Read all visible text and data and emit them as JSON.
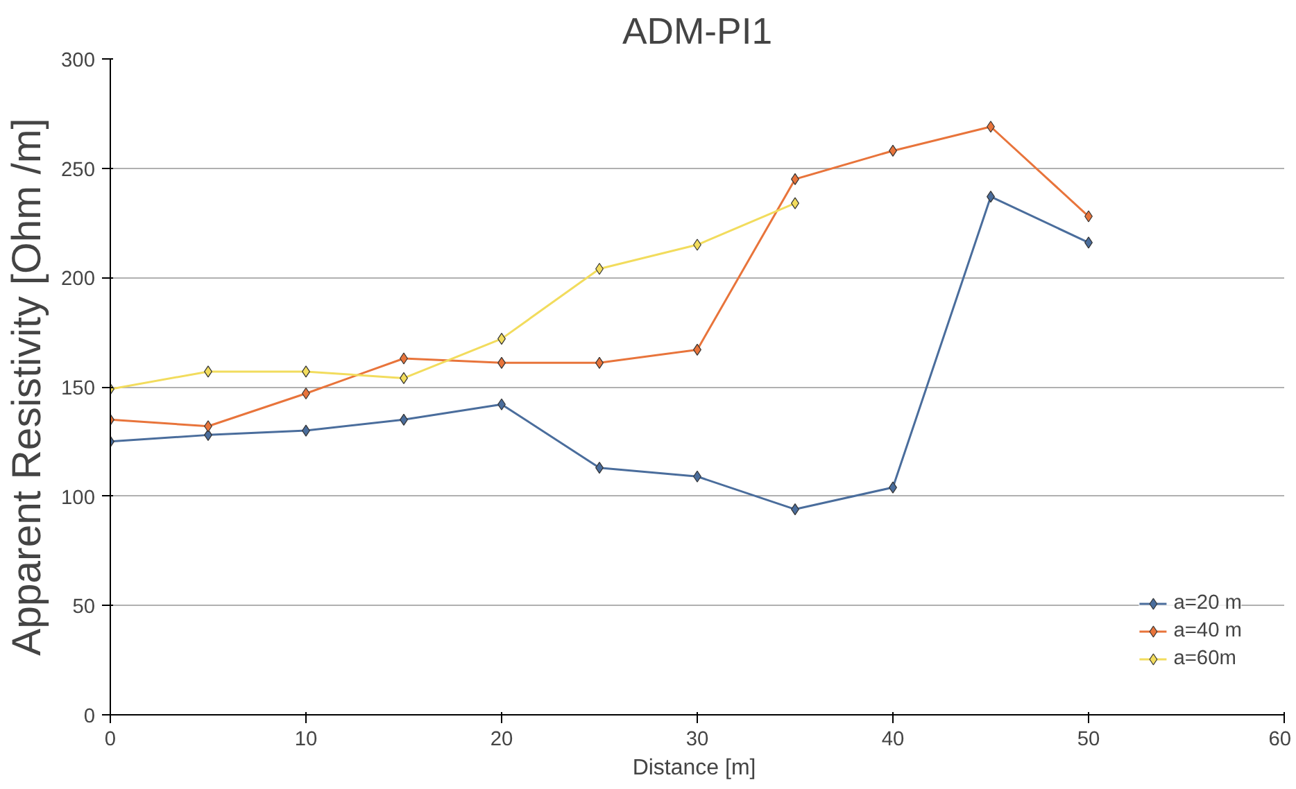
{
  "chart_data": {
    "type": "line",
    "title": "ADM-PI1",
    "xlabel": "Distance  [m]",
    "ylabel": "Apparent Resistivity [Ohm /m]",
    "x": [
      0,
      5,
      10,
      15,
      20,
      25,
      30,
      35,
      40,
      45,
      50
    ],
    "series": [
      {
        "name": "a=20 m",
        "color": "#4a6d9c",
        "values": [
          125,
          128,
          130,
          135,
          142,
          113,
          109,
          94,
          104,
          237,
          216
        ]
      },
      {
        "name": "a=40 m",
        "color": "#e8743b",
        "values": [
          135,
          132,
          147,
          163,
          161,
          161,
          167,
          245,
          258,
          269,
          228
        ]
      },
      {
        "name": "a=60m",
        "color": "#f2dc5d",
        "values": [
          149,
          157,
          157,
          154,
          172,
          204,
          215,
          234,
          null,
          null,
          null
        ]
      }
    ],
    "xlim": [
      0,
      60
    ],
    "xticks": [
      0,
      10,
      20,
      30,
      40,
      50,
      60
    ],
    "ylim": [
      0,
      300
    ],
    "yticks": [
      0,
      50,
      100,
      150,
      200,
      250,
      300
    ],
    "grid": "y",
    "legend": "bottom right",
    "marker": "diamond",
    "line_style": "solid"
  }
}
